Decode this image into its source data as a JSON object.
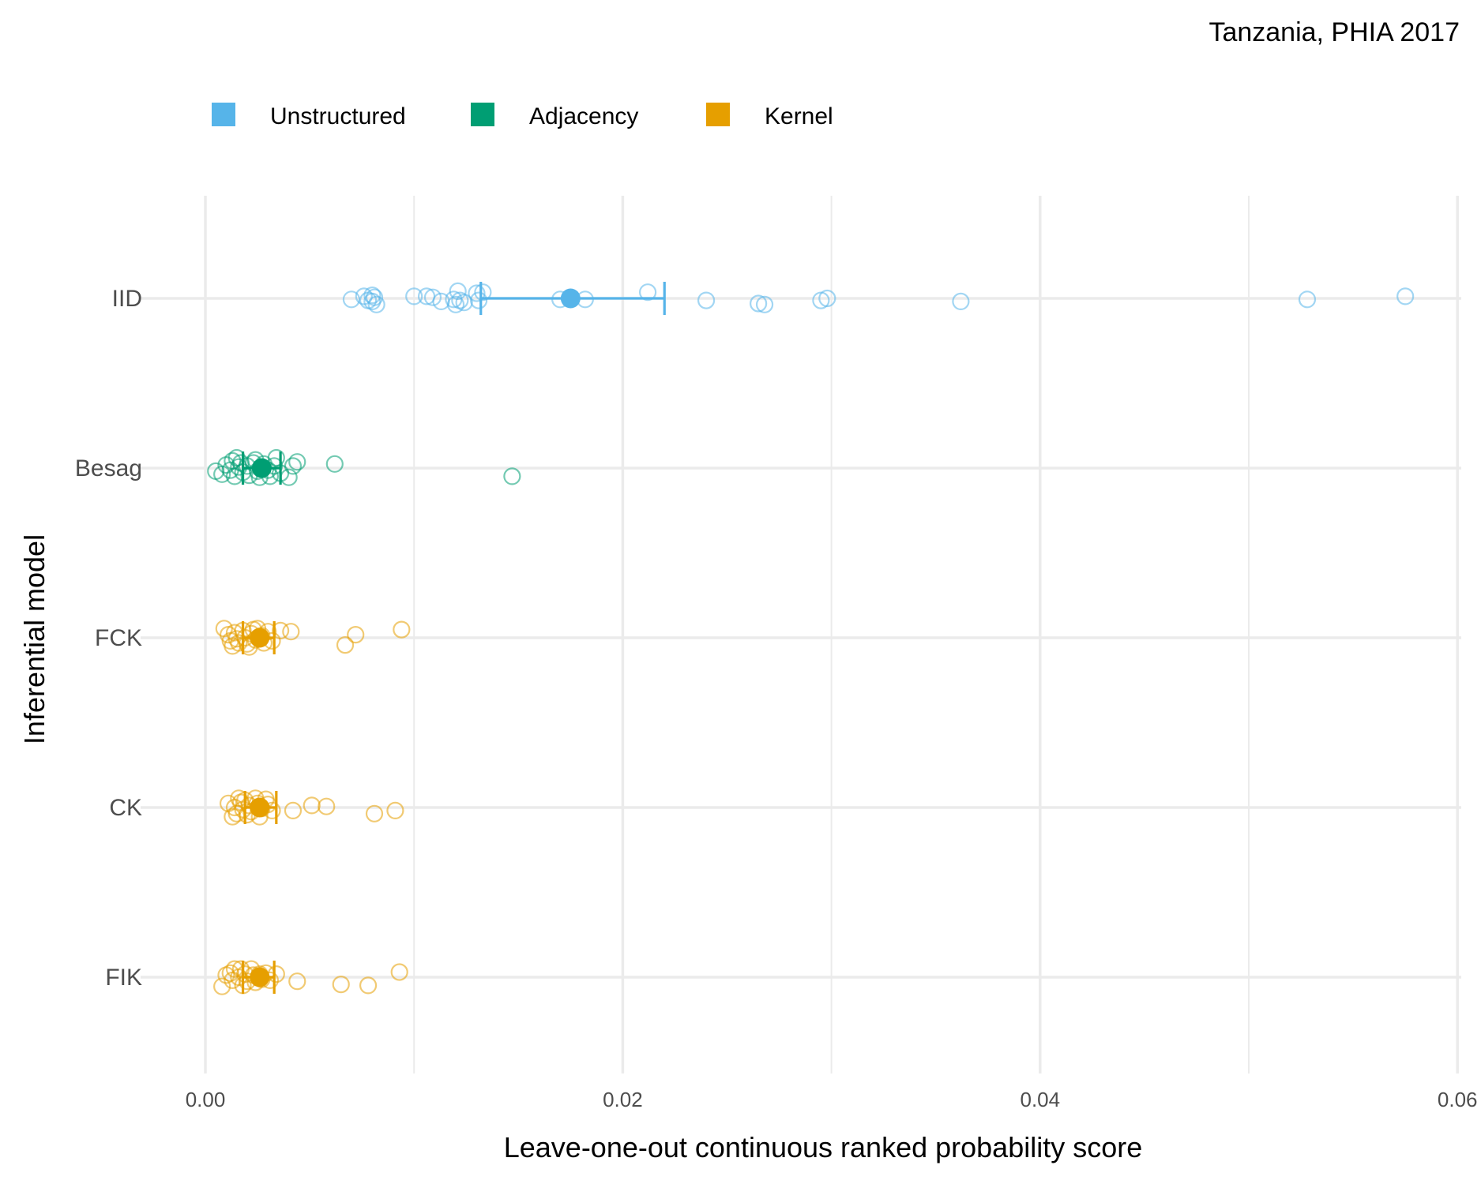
{
  "chart_data": {
    "type": "scatter",
    "subtitle": "Tanzania, PHIA 2017",
    "xlabel": "Leave-one-out continuous ranked probability score",
    "ylabel": "Inferential model",
    "xlim": [
      -0.0015,
      0.06
    ],
    "x_ticks": [
      {
        "value": 0.0,
        "label": "0.00"
      },
      {
        "value": 0.02,
        "label": "0.02"
      },
      {
        "value": 0.04,
        "label": "0.04"
      },
      {
        "value": 0.06,
        "label": "0.06"
      }
    ],
    "x_minor_ticks": [
      0.01,
      0.03,
      0.05
    ],
    "categories": [
      "IID",
      "Besag",
      "FCK",
      "CK",
      "FIK"
    ],
    "grid": true,
    "legend": {
      "position": "top-left",
      "entries": [
        {
          "name": "Unstructured",
          "color": "#56B4E9"
        },
        {
          "name": "Adjacency",
          "color": "#009E73"
        },
        {
          "name": "Kernel",
          "color": "#E69F00"
        }
      ]
    },
    "series": [
      {
        "name": "IID",
        "group": "Unstructured",
        "color": "#56B4E9",
        "mean": 0.0175,
        "ci": [
          0.0132,
          0.022
        ],
        "points": [
          {
            "x": 0.007,
            "j": -0.01
          },
          {
            "x": 0.0076,
            "j": 0.02
          },
          {
            "x": 0.008,
            "j": 0.03
          },
          {
            "x": 0.0078,
            "j": -0.02
          },
          {
            "x": 0.0081,
            "j": 0.01
          },
          {
            "x": 0.0082,
            "j": -0.06
          },
          {
            "x": 0.008,
            "j": -0.03
          },
          {
            "x": 0.01,
            "j": 0.02
          },
          {
            "x": 0.0106,
            "j": 0.02
          },
          {
            "x": 0.0109,
            "j": 0.01
          },
          {
            "x": 0.0113,
            "j": -0.03
          },
          {
            "x": 0.0121,
            "j": 0.07
          },
          {
            "x": 0.0119,
            "j": -0.01
          },
          {
            "x": 0.0122,
            "j": -0.02
          },
          {
            "x": 0.012,
            "j": -0.06
          },
          {
            "x": 0.0124,
            "j": -0.04
          },
          {
            "x": 0.013,
            "j": 0.05
          },
          {
            "x": 0.0133,
            "j": 0.06
          },
          {
            "x": 0.0131,
            "j": -0.02
          },
          {
            "x": 0.017,
            "j": -0.01
          },
          {
            "x": 0.0182,
            "j": -0.01
          },
          {
            "x": 0.0212,
            "j": 0.06
          },
          {
            "x": 0.024,
            "j": -0.02
          },
          {
            "x": 0.0265,
            "j": -0.05
          },
          {
            "x": 0.0268,
            "j": -0.06
          },
          {
            "x": 0.0295,
            "j": -0.02
          },
          {
            "x": 0.0298,
            "j": 0.0
          },
          {
            "x": 0.0362,
            "j": -0.03
          },
          {
            "x": 0.0528,
            "j": -0.01
          },
          {
            "x": 0.0575,
            "j": 0.02
          }
        ]
      },
      {
        "name": "Besag",
        "group": "Adjacency",
        "color": "#009E73",
        "mean": 0.0027,
        "ci": [
          0.0018,
          0.0036
        ],
        "points": [
          {
            "x": 0.0005,
            "j": -0.03
          },
          {
            "x": 0.0008,
            "j": -0.06
          },
          {
            "x": 0.001,
            "j": 0.03
          },
          {
            "x": 0.0012,
            "j": -0.02
          },
          {
            "x": 0.0013,
            "j": 0.07
          },
          {
            "x": 0.0015,
            "j": 0.1
          },
          {
            "x": 0.0014,
            "j": -0.08
          },
          {
            "x": 0.0016,
            "j": 0.01
          },
          {
            "x": 0.0018,
            "j": -0.04
          },
          {
            "x": 0.0017,
            "j": 0.05
          },
          {
            "x": 0.002,
            "j": 0.02
          },
          {
            "x": 0.0021,
            "j": -0.07
          },
          {
            "x": 0.0023,
            "j": 0.05
          },
          {
            "x": 0.0024,
            "j": 0.08
          },
          {
            "x": 0.0025,
            "j": -0.03
          },
          {
            "x": 0.0026,
            "j": -0.09
          },
          {
            "x": 0.0028,
            "j": 0.04
          },
          {
            "x": 0.003,
            "j": -0.02
          },
          {
            "x": 0.0031,
            "j": -0.08
          },
          {
            "x": 0.0033,
            "j": 0.02
          },
          {
            "x": 0.0034,
            "j": 0.1
          },
          {
            "x": 0.0036,
            "j": -0.05
          },
          {
            "x": 0.004,
            "j": -0.09
          },
          {
            "x": 0.0042,
            "j": 0.02
          },
          {
            "x": 0.0044,
            "j": 0.06
          },
          {
            "x": 0.0062,
            "j": 0.04
          },
          {
            "x": 0.0147,
            "j": -0.08
          }
        ]
      },
      {
        "name": "FCK",
        "group": "Kernel",
        "color": "#E69F00",
        "mean": 0.0026,
        "ci": [
          0.0018,
          0.0033
        ],
        "points": [
          {
            "x": 0.0009,
            "j": 0.09
          },
          {
            "x": 0.0011,
            "j": 0.03
          },
          {
            "x": 0.0012,
            "j": -0.03
          },
          {
            "x": 0.0013,
            "j": -0.08
          },
          {
            "x": 0.0014,
            "j": 0.05
          },
          {
            "x": 0.0015,
            "j": -0.01
          },
          {
            "x": 0.0016,
            "j": -0.05
          },
          {
            "x": 0.0018,
            "j": 0.07
          },
          {
            "x": 0.0019,
            "j": 0.0
          },
          {
            "x": 0.002,
            "j": -0.06
          },
          {
            "x": 0.0022,
            "j": 0.04
          },
          {
            "x": 0.0021,
            "j": -0.09
          },
          {
            "x": 0.0023,
            "j": 0.08
          },
          {
            "x": 0.0024,
            "j": -0.02
          },
          {
            "x": 0.0025,
            "j": 0.09
          },
          {
            "x": 0.0027,
            "j": 0.02
          },
          {
            "x": 0.0028,
            "j": -0.05
          },
          {
            "x": 0.003,
            "j": 0.06
          },
          {
            "x": 0.0032,
            "j": -0.03
          },
          {
            "x": 0.0036,
            "j": 0.07
          },
          {
            "x": 0.0041,
            "j": 0.06
          },
          {
            "x": 0.0067,
            "j": -0.07
          },
          {
            "x": 0.0072,
            "j": 0.03
          },
          {
            "x": 0.0094,
            "j": 0.08
          }
        ]
      },
      {
        "name": "CK",
        "group": "Kernel",
        "color": "#E69F00",
        "mean": 0.0026,
        "ci": [
          0.0019,
          0.0034
        ],
        "points": [
          {
            "x": 0.0011,
            "j": 0.04
          },
          {
            "x": 0.0013,
            "j": -0.09
          },
          {
            "x": 0.0014,
            "j": 0.0
          },
          {
            "x": 0.0015,
            "j": -0.06
          },
          {
            "x": 0.0016,
            "j": 0.09
          },
          {
            "x": 0.0017,
            "j": 0.05
          },
          {
            "x": 0.0018,
            "j": -0.02
          },
          {
            "x": 0.0019,
            "j": 0.07
          },
          {
            "x": 0.002,
            "j": -0.07
          },
          {
            "x": 0.0021,
            "j": 0.02
          },
          {
            "x": 0.0022,
            "j": -0.04
          },
          {
            "x": 0.0024,
            "j": 0.09
          },
          {
            "x": 0.0025,
            "j": 0.04
          },
          {
            "x": 0.0026,
            "j": -0.09
          },
          {
            "x": 0.0027,
            "j": -0.01
          },
          {
            "x": 0.0029,
            "j": 0.08
          },
          {
            "x": 0.003,
            "j": 0.03
          },
          {
            "x": 0.0032,
            "j": -0.03
          },
          {
            "x": 0.0042,
            "j": -0.03
          },
          {
            "x": 0.0051,
            "j": 0.02
          },
          {
            "x": 0.0058,
            "j": 0.01
          },
          {
            "x": 0.0081,
            "j": -0.06
          },
          {
            "x": 0.0091,
            "j": -0.03
          }
        ]
      },
      {
        "name": "FIK",
        "group": "Kernel",
        "color": "#E69F00",
        "mean": 0.0026,
        "ci": [
          0.0018,
          0.0033
        ],
        "points": [
          {
            "x": 0.0008,
            "j": -0.09
          },
          {
            "x": 0.001,
            "j": 0.02
          },
          {
            "x": 0.0012,
            "j": 0.04
          },
          {
            "x": 0.0013,
            "j": -0.03
          },
          {
            "x": 0.0014,
            "j": 0.08
          },
          {
            "x": 0.0016,
            "j": 0.0
          },
          {
            "x": 0.0017,
            "j": 0.08
          },
          {
            "x": 0.0018,
            "j": -0.08
          },
          {
            "x": 0.0019,
            "j": 0.03
          },
          {
            "x": 0.002,
            "j": -0.04
          },
          {
            "x": 0.0022,
            "j": 0.08
          },
          {
            "x": 0.0023,
            "j": 0.02
          },
          {
            "x": 0.0024,
            "j": -0.05
          },
          {
            "x": 0.0026,
            "j": 0.03
          },
          {
            "x": 0.0027,
            "j": -0.02
          },
          {
            "x": 0.0029,
            "j": 0.04
          },
          {
            "x": 0.0031,
            "j": -0.03
          },
          {
            "x": 0.0034,
            "j": 0.03
          },
          {
            "x": 0.0044,
            "j": -0.04
          },
          {
            "x": 0.0065,
            "j": -0.07
          },
          {
            "x": 0.0078,
            "j": -0.08
          },
          {
            "x": 0.0093,
            "j": 0.05
          }
        ]
      }
    ]
  }
}
